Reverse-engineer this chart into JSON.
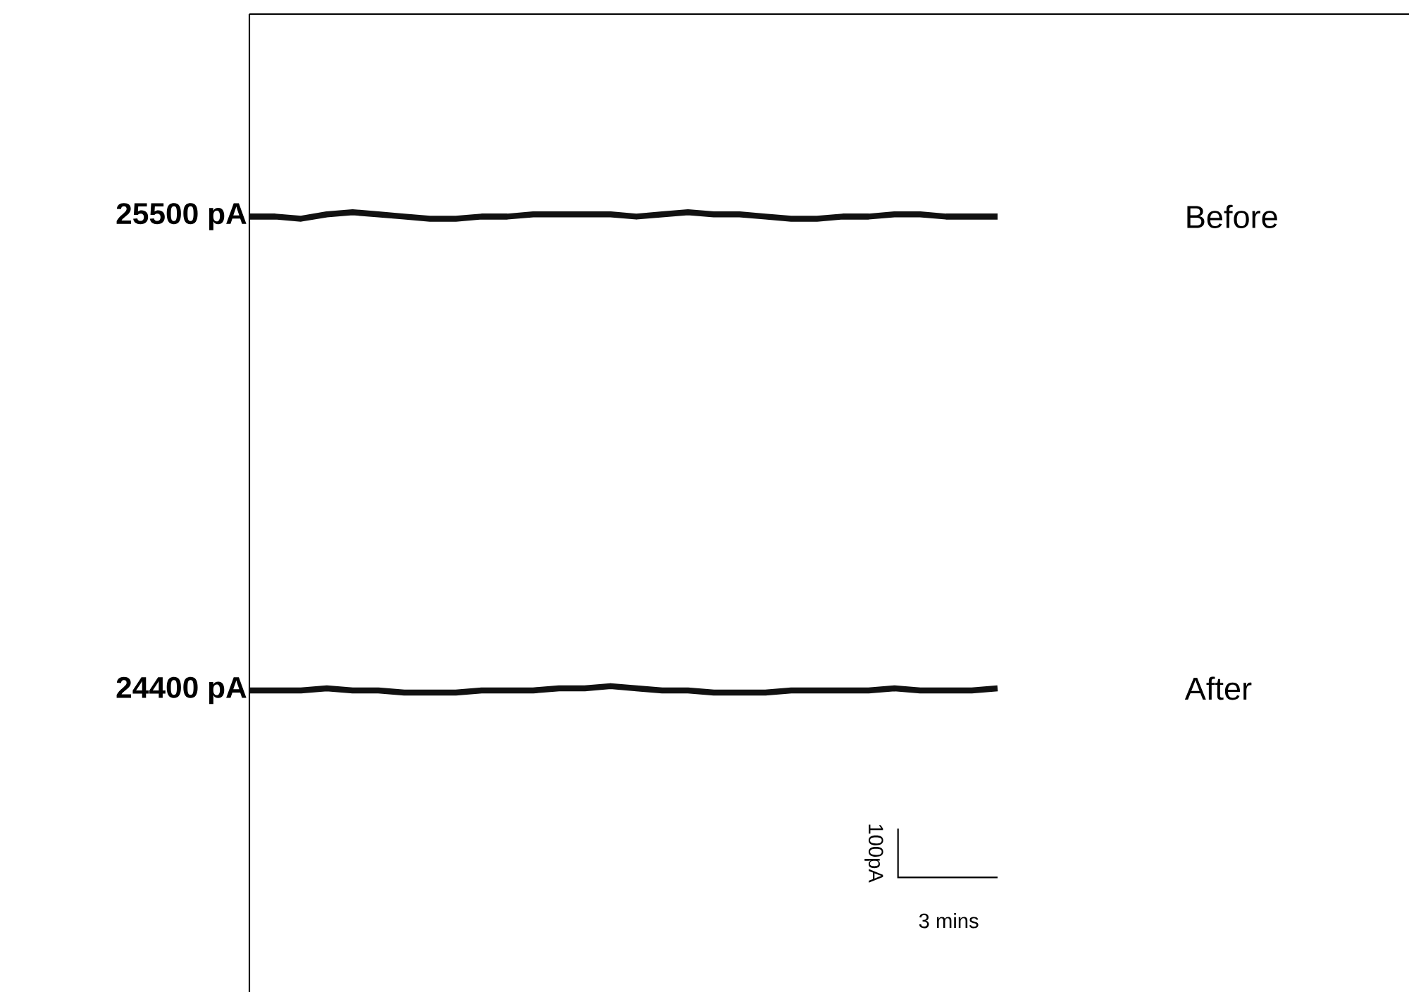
{
  "chart_data": {
    "type": "line",
    "categories": [
      null,
      null,
      null,
      null,
      null,
      null,
      null,
      null,
      null,
      null,
      null,
      null,
      null,
      null,
      null,
      null,
      null,
      null,
      null,
      null,
      null,
      null,
      null,
      null,
      null,
      null,
      null,
      null,
      null,
      null
    ],
    "series": [
      {
        "name": "Before",
        "color": "#111111",
        "values": [
          25500,
          25500,
          25495,
          25505,
          25510,
          25505,
          25500,
          25495,
          25495,
          25500,
          25500,
          25505,
          25505,
          25505,
          25505,
          25500,
          25505,
          25510,
          25505,
          25505,
          25500,
          25495,
          25495,
          25500,
          25500,
          25505,
          25505,
          25500,
          25500,
          25500
        ]
      },
      {
        "name": "After",
        "color": "#111111",
        "values": [
          24400,
          24400,
          24400,
          24405,
          24400,
          24400,
          24395,
          24395,
          24395,
          24400,
          24400,
          24400,
          24405,
          24405,
          24410,
          24405,
          24400,
          24400,
          24395,
          24395,
          24395,
          24400,
          24400,
          24400,
          24400,
          24405,
          24400,
          24400,
          24400,
          24405
        ]
      }
    ],
    "ylim": [
      23700,
      25970
    ],
    "yticks": [
      {
        "value": 24400,
        "label": "24400 pA"
      },
      {
        "value": 25500,
        "label": "25500 pA"
      }
    ],
    "tick_labels": "y",
    "grid": false,
    "marker": "none",
    "line_style": "solid",
    "annotations": [
      "100pA",
      "3 mins"
    ]
  }
}
